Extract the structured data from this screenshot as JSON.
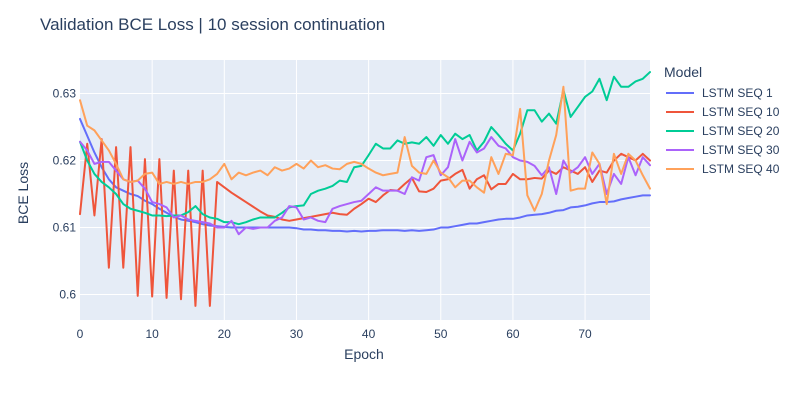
{
  "chart_data": {
    "type": "line",
    "title": "Validation BCE Loss | 10 session continuation",
    "xlabel": "Epoch",
    "ylabel": "BCE Loss",
    "xlim": [
      0,
      79
    ],
    "ylim": [
      0.5962,
      0.635
    ],
    "x_ticks": [
      0,
      10,
      20,
      30,
      40,
      50,
      60,
      70
    ],
    "y_ticks": [
      0.6,
      0.61,
      0.62,
      0.63
    ],
    "y_tick_labels": [
      "0.6",
      "0.61",
      "0.62",
      "0.63"
    ],
    "grid": true,
    "legend": {
      "title": "Model",
      "placement": "right"
    },
    "x": [
      0,
      1,
      2,
      3,
      4,
      5,
      6,
      7,
      8,
      9,
      10,
      11,
      12,
      13,
      14,
      15,
      16,
      17,
      18,
      19,
      20,
      21,
      22,
      23,
      24,
      25,
      26,
      27,
      28,
      29,
      30,
      31,
      32,
      33,
      34,
      35,
      36,
      37,
      38,
      39,
      40,
      41,
      42,
      43,
      44,
      45,
      46,
      47,
      48,
      49,
      50,
      51,
      52,
      53,
      54,
      55,
      56,
      57,
      58,
      59,
      60,
      61,
      62,
      63,
      64,
      65,
      66,
      67,
      68,
      69,
      70,
      71,
      72,
      73,
      74,
      75,
      76,
      77,
      78,
      79
    ],
    "series": [
      {
        "name": "LSTM SEQ 1",
        "color": "#636efa",
        "values": [
          0.6262,
          0.6237,
          0.6212,
          0.619,
          0.6172,
          0.616,
          0.6155,
          0.615,
          0.6147,
          0.614,
          0.6135,
          0.6128,
          0.6122,
          0.6116,
          0.6112,
          0.611,
          0.6108,
          0.6105,
          0.6103,
          0.6102,
          0.6101,
          0.61,
          0.61,
          0.61,
          0.61,
          0.61,
          0.61,
          0.61,
          0.61,
          0.61,
          0.6099,
          0.6097,
          0.6097,
          0.6096,
          0.6096,
          0.6095,
          0.6095,
          0.6094,
          0.6095,
          0.6094,
          0.6095,
          0.6095,
          0.6096,
          0.6096,
          0.6096,
          0.6095,
          0.6096,
          0.6095,
          0.6096,
          0.6097,
          0.61,
          0.61,
          0.6102,
          0.6104,
          0.6106,
          0.6106,
          0.6108,
          0.611,
          0.6112,
          0.6113,
          0.6113,
          0.6115,
          0.6118,
          0.6119,
          0.612,
          0.6122,
          0.6125,
          0.6126,
          0.613,
          0.6131,
          0.6133,
          0.6136,
          0.6138,
          0.6138,
          0.6139,
          0.6142,
          0.6144,
          0.6146,
          0.6148,
          0.6148
        ]
      },
      {
        "name": "LSTM SEQ 10",
        "color": "#ef553b",
        "values": [
          0.612,
          0.6225,
          0.6118,
          0.6232,
          0.604,
          0.622,
          0.604,
          0.622,
          0.5998,
          0.6202,
          0.5997,
          0.6202,
          0.5995,
          0.6185,
          0.5993,
          0.6185,
          0.5983,
          0.6185,
          0.5983,
          0.6168,
          0.616,
          0.6152,
          0.6145,
          0.6138,
          0.6131,
          0.6124,
          0.6118,
          0.6116,
          0.6112,
          0.611,
          0.6112,
          0.6114,
          0.6116,
          0.6118,
          0.612,
          0.6122,
          0.612,
          0.6119,
          0.6128,
          0.6135,
          0.6143,
          0.6138,
          0.6148,
          0.6156,
          0.6155,
          0.6165,
          0.6174,
          0.6154,
          0.6153,
          0.6158,
          0.617,
          0.6172,
          0.618,
          0.6186,
          0.6158,
          0.6172,
          0.6178,
          0.6157,
          0.6165,
          0.6165,
          0.618,
          0.6172,
          0.6172,
          0.6174,
          0.6173,
          0.6185,
          0.618,
          0.619,
          0.6185,
          0.618,
          0.619,
          0.6168,
          0.6185,
          0.6182,
          0.62,
          0.621,
          0.6205,
          0.62,
          0.621,
          0.62
        ]
      },
      {
        "name": "LSTM SEQ 20",
        "color": "#00cc96",
        "values": [
          0.6228,
          0.62,
          0.618,
          0.6168,
          0.616,
          0.615,
          0.6135,
          0.6128,
          0.6125,
          0.6122,
          0.6118,
          0.6118,
          0.6117,
          0.6118,
          0.6118,
          0.6123,
          0.6132,
          0.612,
          0.6115,
          0.6113,
          0.6108,
          0.6108,
          0.6105,
          0.6108,
          0.6112,
          0.6115,
          0.6115,
          0.6115,
          0.6122,
          0.613,
          0.6132,
          0.6133,
          0.615,
          0.6155,
          0.6158,
          0.6162,
          0.617,
          0.6168,
          0.619,
          0.6192,
          0.6208,
          0.6225,
          0.6218,
          0.6218,
          0.623,
          0.6225,
          0.6227,
          0.6225,
          0.6235,
          0.6222,
          0.6238,
          0.6225,
          0.624,
          0.6232,
          0.6238,
          0.6215,
          0.6228,
          0.625,
          0.6238,
          0.6225,
          0.6215,
          0.624,
          0.6275,
          0.6275,
          0.6258,
          0.627,
          0.6255,
          0.6305,
          0.6265,
          0.628,
          0.6295,
          0.6303,
          0.6322,
          0.629,
          0.6325,
          0.631,
          0.631,
          0.6318,
          0.6322,
          0.6332
        ]
      },
      {
        "name": "LSTM SEQ 30",
        "color": "#ab63fa",
        "values": [
          0.6228,
          0.6215,
          0.6195,
          0.6198,
          0.6198,
          0.6185,
          0.6172,
          0.6168,
          0.617,
          0.6158,
          0.6138,
          0.6135,
          0.613,
          0.6115,
          0.6118,
          0.6112,
          0.611,
          0.6108,
          0.6106,
          0.61,
          0.61,
          0.611,
          0.609,
          0.61,
          0.6098,
          0.61,
          0.61,
          0.611,
          0.6115,
          0.6132,
          0.613,
          0.6112,
          0.6115,
          0.611,
          0.6108,
          0.6128,
          0.6132,
          0.6135,
          0.6138,
          0.614,
          0.615,
          0.616,
          0.6155,
          0.6155,
          0.6155,
          0.615,
          0.6175,
          0.617,
          0.6205,
          0.6208,
          0.6178,
          0.619,
          0.6232,
          0.62,
          0.6228,
          0.6212,
          0.6218,
          0.6235,
          0.6222,
          0.6218,
          0.6205,
          0.62,
          0.6198,
          0.6192,
          0.6178,
          0.619,
          0.615,
          0.62,
          0.6182,
          0.619,
          0.6205,
          0.618,
          0.6195,
          0.615,
          0.618,
          0.6165,
          0.6205,
          0.6178,
          0.6205,
          0.6193
        ]
      },
      {
        "name": "LSTM SEQ 40",
        "color": "#ffa15a",
        "values": [
          0.629,
          0.6252,
          0.6245,
          0.623,
          0.6215,
          0.6195,
          0.6172,
          0.6168,
          0.617,
          0.618,
          0.6182,
          0.6165,
          0.6168,
          0.6165,
          0.6168,
          0.6165,
          0.6168,
          0.6168,
          0.6172,
          0.618,
          0.6195,
          0.6172,
          0.6182,
          0.6178,
          0.6182,
          0.6185,
          0.6178,
          0.619,
          0.6185,
          0.6188,
          0.6195,
          0.6188,
          0.62,
          0.619,
          0.6193,
          0.6188,
          0.6187,
          0.6195,
          0.6198,
          0.6195,
          0.6188,
          0.6182,
          0.6178,
          0.618,
          0.6182,
          0.6235,
          0.6192,
          0.6182,
          0.618,
          0.62,
          0.6182,
          0.6175,
          0.616,
          0.617,
          0.617,
          0.616,
          0.6152,
          0.6205,
          0.618,
          0.621,
          0.6208,
          0.6277,
          0.6148,
          0.6125,
          0.615,
          0.62,
          0.6238,
          0.631,
          0.6155,
          0.6158,
          0.6158,
          0.6212,
          0.6195,
          0.6135,
          0.621,
          0.618,
          0.621,
          0.62,
          0.6178,
          0.6158
        ]
      }
    ]
  }
}
